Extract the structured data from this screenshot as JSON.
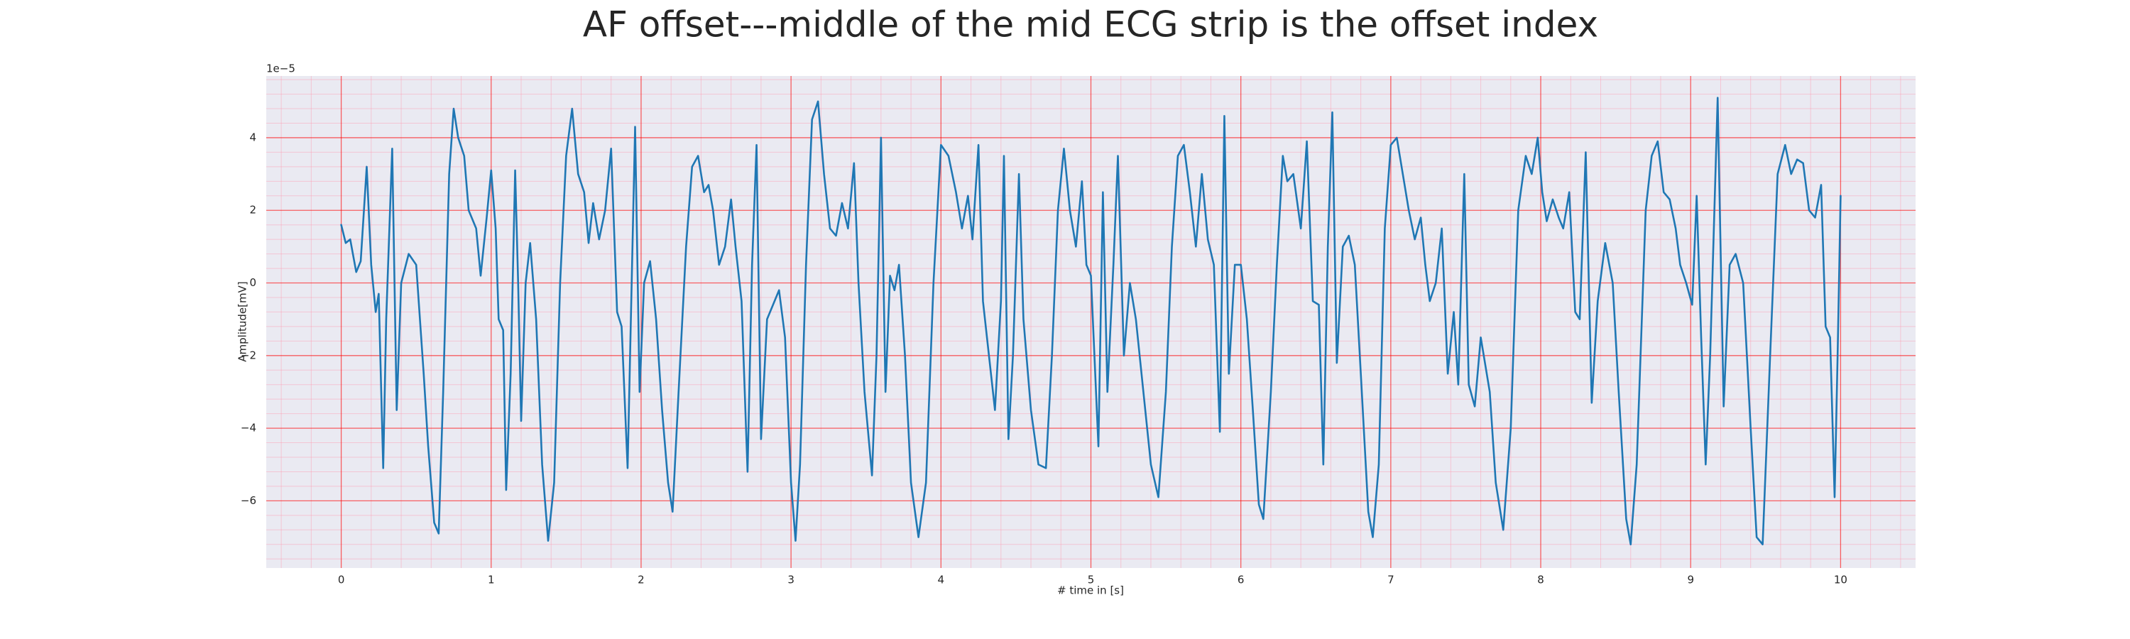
{
  "chart_data": {
    "type": "line",
    "title": "AF offset---middle of the mid ECG strip is the offset index",
    "xlabel": "# time in [s]",
    "ylabel": "Amplitude[mV]",
    "y_offset_label": "1e−5",
    "color": "#1f77b4",
    "background": "#eaeaf2",
    "grid": true,
    "grid_color": "#ff0000",
    "minor_grid_color": "#ff9ab0",
    "xlim": [
      -0.5,
      10.5
    ],
    "ylim": [
      -7.85,
      5.7
    ],
    "xticks": [
      0,
      1,
      2,
      3,
      4,
      5,
      6,
      7,
      8,
      9,
      10
    ],
    "yticks": [
      {
        "value": -6,
        "label": "−6"
      },
      {
        "value": -4,
        "label": "−4"
      },
      {
        "value": -2,
        "label": "−2"
      },
      0,
      2,
      4
    ],
    "xminorticks": [
      -0.4,
      -0.2,
      0.2,
      0.4,
      0.6,
      0.8,
      1.2,
      1.4,
      1.6,
      1.8,
      2.2,
      2.4,
      2.6,
      2.8,
      3.2,
      3.4,
      3.6,
      3.8,
      4.2,
      4.4,
      4.6,
      4.8,
      5.2,
      5.4,
      5.6,
      5.8,
      6.2,
      6.4,
      6.6,
      6.8,
      7.2,
      7.4,
      7.6,
      7.8,
      8.2,
      8.4,
      8.6,
      8.8,
      9.2,
      9.4,
      9.6,
      9.8,
      10.2,
      10.4
    ],
    "yminorticks": [
      -7.6,
      -7.2,
      -6.8,
      -6.4,
      -5.6,
      -5.2,
      -4.8,
      -4.4,
      -3.6,
      -3.2,
      -2.8,
      -2.4,
      -1.6,
      -1.2,
      -0.8,
      -0.4,
      0.4,
      0.8,
      1.2,
      1.6,
      2.4,
      2.8,
      3.2,
      3.6,
      4.4,
      4.8,
      5.2,
      5.6
    ],
    "x": [
      0,
      0.03,
      0.06,
      0.1,
      0.13,
      0.17,
      0.2,
      0.23,
      0.25,
      0.28,
      0.3,
      0.34,
      0.37,
      0.4,
      0.45,
      0.5,
      0.55,
      0.58,
      0.62,
      0.65,
      0.68,
      0.72,
      0.75,
      0.78,
      0.82,
      0.85,
      0.9,
      0.93,
      0.97,
      1.0,
      1.03,
      1.05,
      1.08,
      1.1,
      1.13,
      1.16,
      1.18,
      1.2,
      1.23,
      1.26,
      1.3,
      1.34,
      1.38,
      1.42,
      1.46,
      1.5,
      1.54,
      1.58,
      1.62,
      1.65,
      1.68,
      1.72,
      1.76,
      1.8,
      1.84,
      1.87,
      1.91,
      1.96,
      1.99,
      2.02,
      2.06,
      2.1,
      2.14,
      2.18,
      2.21,
      2.25,
      2.3,
      2.34,
      2.38,
      2.42,
      2.45,
      2.48,
      2.52,
      2.56,
      2.6,
      2.63,
      2.67,
      2.71,
      2.74,
      2.77,
      2.8,
      2.84,
      2.88,
      2.92,
      2.96,
      3.0,
      3.03,
      3.06,
      3.1,
      3.14,
      3.18,
      3.22,
      3.26,
      3.3,
      3.34,
      3.38,
      3.42,
      3.45,
      3.49,
      3.54,
      3.57,
      3.6,
      3.63,
      3.66,
      3.69,
      3.72,
      3.76,
      3.8,
      3.85,
      3.9,
      3.95,
      4.0,
      4.05,
      4.1,
      4.14,
      4.18,
      4.21,
      4.25,
      4.28,
      4.32,
      4.36,
      4.4,
      4.42,
      4.45,
      4.48,
      4.52,
      4.55,
      4.6,
      4.65,
      4.7,
      4.74,
      4.78,
      4.82,
      4.86,
      4.9,
      4.94,
      4.97,
      5.0,
      5.05,
      5.08,
      5.11,
      5.15,
      5.18,
      5.22,
      5.26,
      5.3,
      5.35,
      5.4,
      5.45,
      5.5,
      5.54,
      5.58,
      5.62,
      5.66,
      5.7,
      5.74,
      5.78,
      5.82,
      5.86,
      5.89,
      5.92,
      5.96,
      6.0,
      6.04,
      6.08,
      6.12,
      6.15,
      6.2,
      6.24,
      6.28,
      6.31,
      6.35,
      6.4,
      6.44,
      6.48,
      6.52,
      6.55,
      6.58,
      6.61,
      6.64,
      6.68,
      6.72,
      6.76,
      6.8,
      6.85,
      6.88,
      6.92,
      6.96,
      7.0,
      7.04,
      7.08,
      7.12,
      7.16,
      7.2,
      7.23,
      7.26,
      7.3,
      7.34,
      7.38,
      7.42,
      7.45,
      7.49,
      7.52,
      7.56,
      7.6,
      7.66,
      7.7,
      7.75,
      7.8,
      7.85,
      7.9,
      7.94,
      7.98,
      8.01,
      8.04,
      8.08,
      8.12,
      8.15,
      8.19,
      8.23,
      8.26,
      8.3,
      8.34,
      8.38,
      8.43,
      8.48,
      8.52,
      8.57,
      8.6,
      8.64,
      8.7,
      8.74,
      8.78,
      8.82,
      8.86,
      8.9,
      8.93,
      8.97,
      9.01,
      9.04,
      9.07,
      9.1,
      9.13,
      9.18,
      9.22,
      9.26,
      9.3,
      9.35,
      9.4,
      9.44,
      9.48,
      9.53,
      9.58,
      9.63,
      9.67,
      9.71,
      9.75,
      9.79,
      9.83,
      9.87,
      9.9,
      9.93,
      9.96,
      9.98,
      10.0
    ],
    "values": [
      1.6,
      1.1,
      1.2,
      0.3,
      0.6,
      3.2,
      0.5,
      -0.8,
      -0.3,
      -5.1,
      -1.0,
      3.7,
      -3.5,
      0.0,
      0.8,
      0.5,
      -2.5,
      -4.5,
      -6.6,
      -6.9,
      -3.0,
      3.0,
      4.8,
      4.0,
      3.5,
      2.0,
      1.5,
      0.2,
      1.8,
      3.1,
      1.5,
      -1.0,
      -1.3,
      -5.7,
      -2.5,
      3.1,
      0.0,
      -3.8,
      0.0,
      1.1,
      -1.0,
      -5.0,
      -7.1,
      -5.5,
      0.0,
      3.5,
      4.8,
      3.0,
      2.5,
      1.1,
      2.2,
      1.2,
      2.0,
      3.7,
      -0.8,
      -1.2,
      -5.1,
      4.3,
      -3.0,
      0.0,
      0.6,
      -1.0,
      -3.5,
      -5.5,
      -6.3,
      -3.0,
      1.0,
      3.2,
      3.5,
      2.5,
      2.7,
      2.0,
      0.5,
      1.0,
      2.3,
      1.0,
      -0.5,
      -5.2,
      0.5,
      3.8,
      -4.3,
      -1.0,
      -0.6,
      -0.2,
      -1.5,
      -5.5,
      -7.1,
      -5.0,
      0.5,
      4.5,
      5.0,
      3.0,
      1.5,
      1.3,
      2.2,
      1.5,
      3.3,
      0.0,
      -3.0,
      -5.3,
      -2.0,
      4.0,
      -3.0,
      0.2,
      -0.2,
      0.5,
      -2.0,
      -5.5,
      -7.0,
      -5.5,
      0.0,
      3.8,
      3.5,
      2.5,
      1.5,
      2.4,
      1.2,
      3.8,
      -0.5,
      -2.0,
      -3.5,
      -0.5,
      3.5,
      -4.3,
      -2.0,
      3.0,
      -1.0,
      -3.5,
      -5.0,
      -5.1,
      -2.0,
      2.0,
      3.7,
      2.0,
      1.0,
      2.8,
      0.5,
      0.2,
      -4.5,
      2.5,
      -3.0,
      0.5,
      3.5,
      -2.0,
      0.0,
      -1.0,
      -3.0,
      -5.0,
      -5.9,
      -3.0,
      1.0,
      3.5,
      3.8,
      2.5,
      1.0,
      3.0,
      1.2,
      0.5,
      -4.1,
      4.6,
      -2.5,
      0.5,
      0.5,
      -1.0,
      -3.5,
      -6.1,
      -6.5,
      -3.0,
      0.5,
      3.5,
      2.8,
      3.0,
      1.5,
      3.9,
      -0.5,
      -0.6,
      -5.0,
      1.0,
      4.7,
      -2.2,
      1.0,
      1.3,
      0.5,
      -2.5,
      -6.3,
      -7.0,
      -5.0,
      1.5,
      3.8,
      4.0,
      3.0,
      2.0,
      1.2,
      1.8,
      0.5,
      -0.5,
      0.0,
      1.5,
      -2.5,
      -0.8,
      -2.8,
      3.0,
      -2.8,
      -3.4,
      -1.5,
      -3.0,
      -5.5,
      -6.8,
      -4.0,
      2.0,
      3.5,
      3.0,
      4.0,
      2.5,
      1.7,
      2.3,
      1.8,
      1.5,
      2.5,
      -0.8,
      -1.0,
      3.6,
      -3.3,
      -0.5,
      1.1,
      0.0,
      -3.0,
      -6.5,
      -7.2,
      -5.0,
      2.0,
      3.5,
      3.9,
      2.5,
      2.3,
      1.5,
      0.5,
      0.0,
      -0.6,
      2.4,
      -1.5,
      -5.0,
      -2.0,
      5.1,
      -3.4,
      0.5,
      0.8,
      0.0,
      -4.0,
      -7.0,
      -7.2,
      -2.0,
      3.0,
      3.8,
      3.0,
      3.4,
      3.3,
      2.0,
      1.8,
      2.7,
      -1.2,
      -1.5,
      -5.9,
      -2.0,
      2.4
    ]
  }
}
